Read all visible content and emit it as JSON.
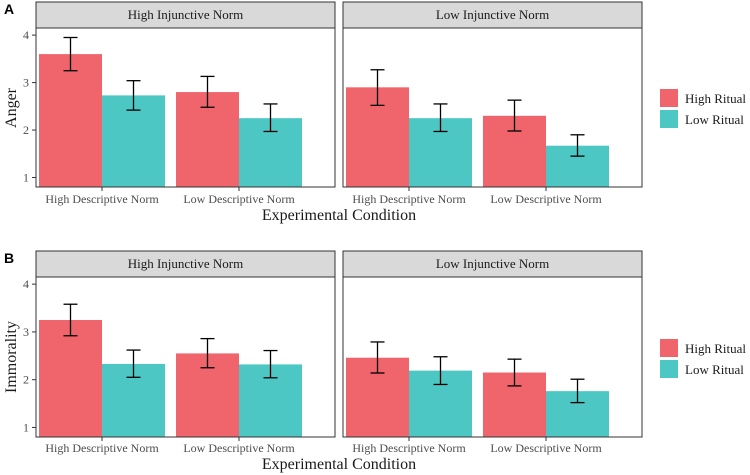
{
  "chart_data": [
    {
      "type": "bar",
      "panel_label": "A",
      "facets": [
        "High Injunctive Norm",
        "Low Injunctive Norm"
      ],
      "categories": [
        "High Descriptive Norm",
        "Low Descriptive Norm"
      ],
      "series": [
        {
          "name": "High Ritual",
          "color": "#F0646C",
          "values": [
            [
              3.6,
              2.8
            ],
            [
              2.9,
              2.3
            ]
          ],
          "error_low": [
            [
              3.25,
              2.48
            ],
            [
              2.52,
              1.98
            ]
          ],
          "error_high": [
            [
              3.95,
              3.13
            ],
            [
              3.27,
              2.63
            ]
          ]
        },
        {
          "name": "Low Ritual",
          "color": "#4DC7C3",
          "values": [
            [
              2.73,
              2.25
            ],
            [
              2.25,
              1.67
            ]
          ],
          "error_low": [
            [
              2.42,
              1.97
            ],
            [
              1.97,
              1.45
            ]
          ],
          "error_high": [
            [
              3.04,
              2.55
            ],
            [
              2.55,
              1.9
            ]
          ]
        }
      ],
      "xlabel": "Experimental Condition",
      "ylabel": "Anger",
      "ylim": [
        0.8,
        4.15
      ],
      "yticks": [
        1,
        2,
        3,
        4
      ],
      "legend_position": "right",
      "grid": false
    },
    {
      "type": "bar",
      "panel_label": "B",
      "facets": [
        "High Injunctive Norm",
        "Low Injunctive Norm"
      ],
      "categories": [
        "High Descriptive Norm",
        "Low Descriptive Norm"
      ],
      "series": [
        {
          "name": "High Ritual",
          "color": "#F0646C",
          "values": [
            [
              3.25,
              2.55
            ],
            [
              2.46,
              2.15
            ]
          ],
          "error_low": [
            [
              2.92,
              2.25
            ],
            [
              2.14,
              1.87
            ]
          ],
          "error_high": [
            [
              3.58,
              2.86
            ],
            [
              2.79,
              2.43
            ]
          ]
        },
        {
          "name": "Low Ritual",
          "color": "#4DC7C3",
          "values": [
            [
              2.33,
              2.32
            ],
            [
              2.19,
              1.76
            ]
          ],
          "error_low": [
            [
              2.05,
              2.04
            ],
            [
              1.9,
              1.52
            ]
          ],
          "error_high": [
            [
              2.62,
              2.61
            ],
            [
              2.48,
              2.01
            ]
          ]
        }
      ],
      "xlabel": "Experimental Condition",
      "ylabel": "Immorality",
      "ylim": [
        0.8,
        4.15
      ],
      "yticks": [
        1,
        2,
        3,
        4
      ],
      "legend_position": "right",
      "grid": false
    }
  ]
}
